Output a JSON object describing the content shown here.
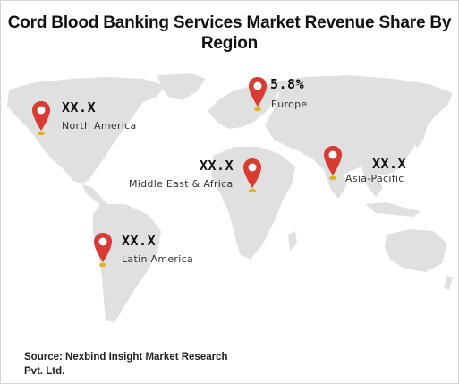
{
  "title": "Cord Blood Banking Services Market Revenue Share By Region",
  "colors": {
    "land": "#e0e0e0",
    "pin": "#d93a32",
    "pin_dot": "#ffffff",
    "pin_shadow": "#e0b21e"
  },
  "regions": [
    {
      "name": "North America",
      "value": "XX.X"
    },
    {
      "name": "Europe",
      "value": "5.8%"
    },
    {
      "name": "Middle East & Africa",
      "value": "XX.X"
    },
    {
      "name": "Asia-Pacific",
      "value": "XX.X"
    },
    {
      "name": "Latin America",
      "value": "XX.X"
    }
  ],
  "source": "Source: Nexbind Insight Market Research Pvt. Ltd."
}
